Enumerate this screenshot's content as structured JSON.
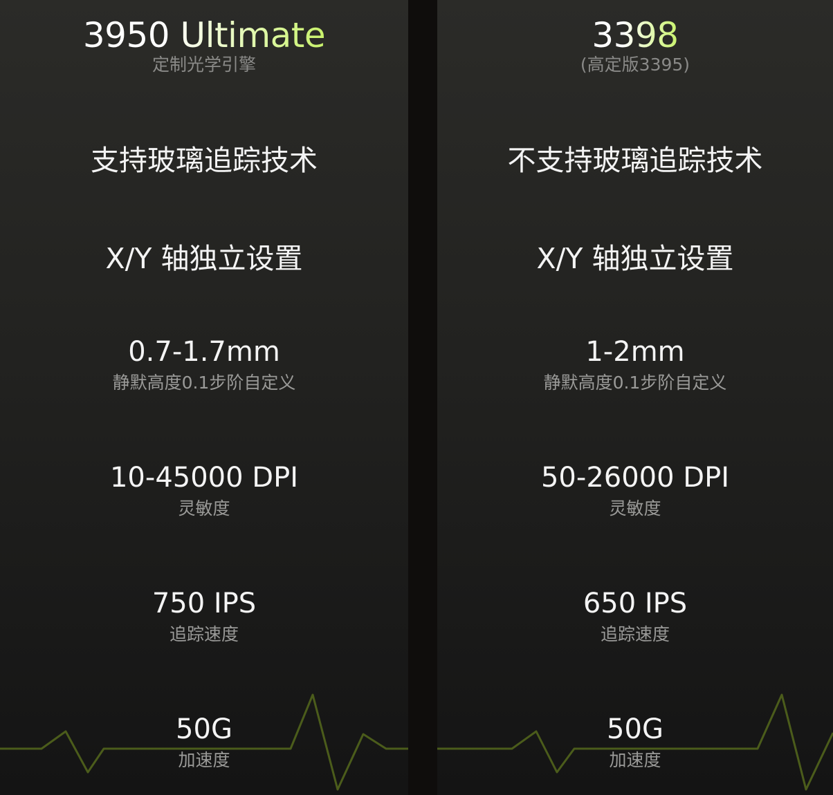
{
  "colors": {
    "accent": "#c8f26a",
    "pulse_line": "#5a6e1e",
    "background": "#222220"
  },
  "left": {
    "title": "3950 Ultimate",
    "subtitle": "定制光学引擎",
    "glass_tracking": "支持玻璃追踪技术",
    "xy": "X/Y 轴独立设置",
    "lod": {
      "value": "0.7-1.7mm",
      "label": "静默高度0.1步阶自定义"
    },
    "dpi": {
      "value": "10-45000 DPI",
      "label": "灵敏度"
    },
    "ips": {
      "value": "750 IPS",
      "label": "追踪速度"
    },
    "accel": {
      "value": "50G",
      "label": "加速度"
    }
  },
  "right": {
    "title": "3398",
    "subtitle": "(高定版3395)",
    "glass_tracking": "不支持玻璃追踪技术",
    "xy": "X/Y 轴独立设置",
    "lod": {
      "value": "1-2mm",
      "label": "静默高度0.1步阶自定义"
    },
    "dpi": {
      "value": "50-26000 DPI",
      "label": "灵敏度"
    },
    "ips": {
      "value": "650 IPS",
      "label": "追踪速度"
    },
    "accel": {
      "value": "50G",
      "label": "加速度"
    }
  }
}
